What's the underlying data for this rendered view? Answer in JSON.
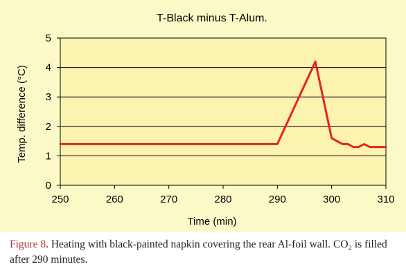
{
  "colors": {
    "panel_background": "#fcf9c8",
    "plot_background": "#fcf3b0",
    "line": "#e8231c",
    "caption_label": "#b0323a"
  },
  "chart_data": {
    "type": "line",
    "title": "T-Black minus T-Alum.",
    "xlabel": "Time (min)",
    "ylabel": "Temp. difference (°C)",
    "xlim": [
      250,
      310
    ],
    "ylim": [
      0,
      5
    ],
    "xticks": [
      250,
      260,
      270,
      280,
      290,
      300,
      310
    ],
    "yticks": [
      0,
      1,
      2,
      3,
      4,
      5
    ],
    "grid": "horizontal",
    "series": [
      {
        "color": "#e8231c",
        "x": [
          250,
          290,
          297,
          300,
          302,
          303,
          304,
          305,
          306,
          307,
          308,
          309,
          310
        ],
        "y": [
          1.4,
          1.4,
          4.2,
          1.6,
          1.4,
          1.4,
          1.3,
          1.3,
          1.4,
          1.3,
          1.3,
          1.3,
          1.3
        ]
      }
    ]
  },
  "caption": {
    "label": "Figure 8",
    "text": ". Heating with black-painted napkin covering the rear Al-foil wall. CO₂ is filled after 290 minutes."
  }
}
